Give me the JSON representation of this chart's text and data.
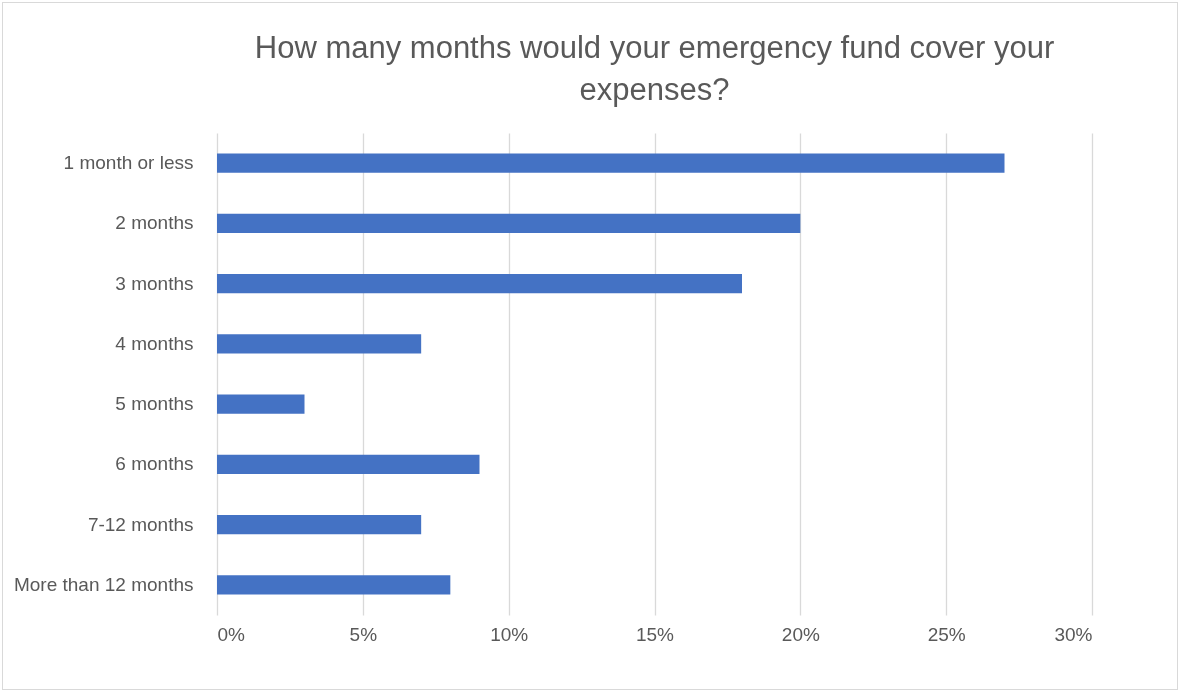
{
  "chart_data": {
    "type": "bar",
    "orientation": "horizontal",
    "title": "How many months would your emergency fund cover your expenses?",
    "categories": [
      "1 month or less",
      "2 months",
      "3 months",
      "4 months",
      "5 months",
      "6 months",
      "7-12 months",
      "More than 12 months"
    ],
    "values": [
      27,
      20,
      18,
      7,
      3,
      9,
      7,
      8
    ],
    "color": "#4472c4",
    "xlim": [
      0,
      30
    ],
    "xticks": [
      {
        "value": 0,
        "label": "0%"
      },
      {
        "value": 5,
        "label": "5%"
      },
      {
        "value": 10,
        "label": "10%"
      },
      {
        "value": 15,
        "label": "15%"
      },
      {
        "value": 20,
        "label": "20%"
      },
      {
        "value": 25,
        "label": "25%"
      },
      {
        "value": 30,
        "label": "30%"
      }
    ],
    "grid": "x"
  }
}
